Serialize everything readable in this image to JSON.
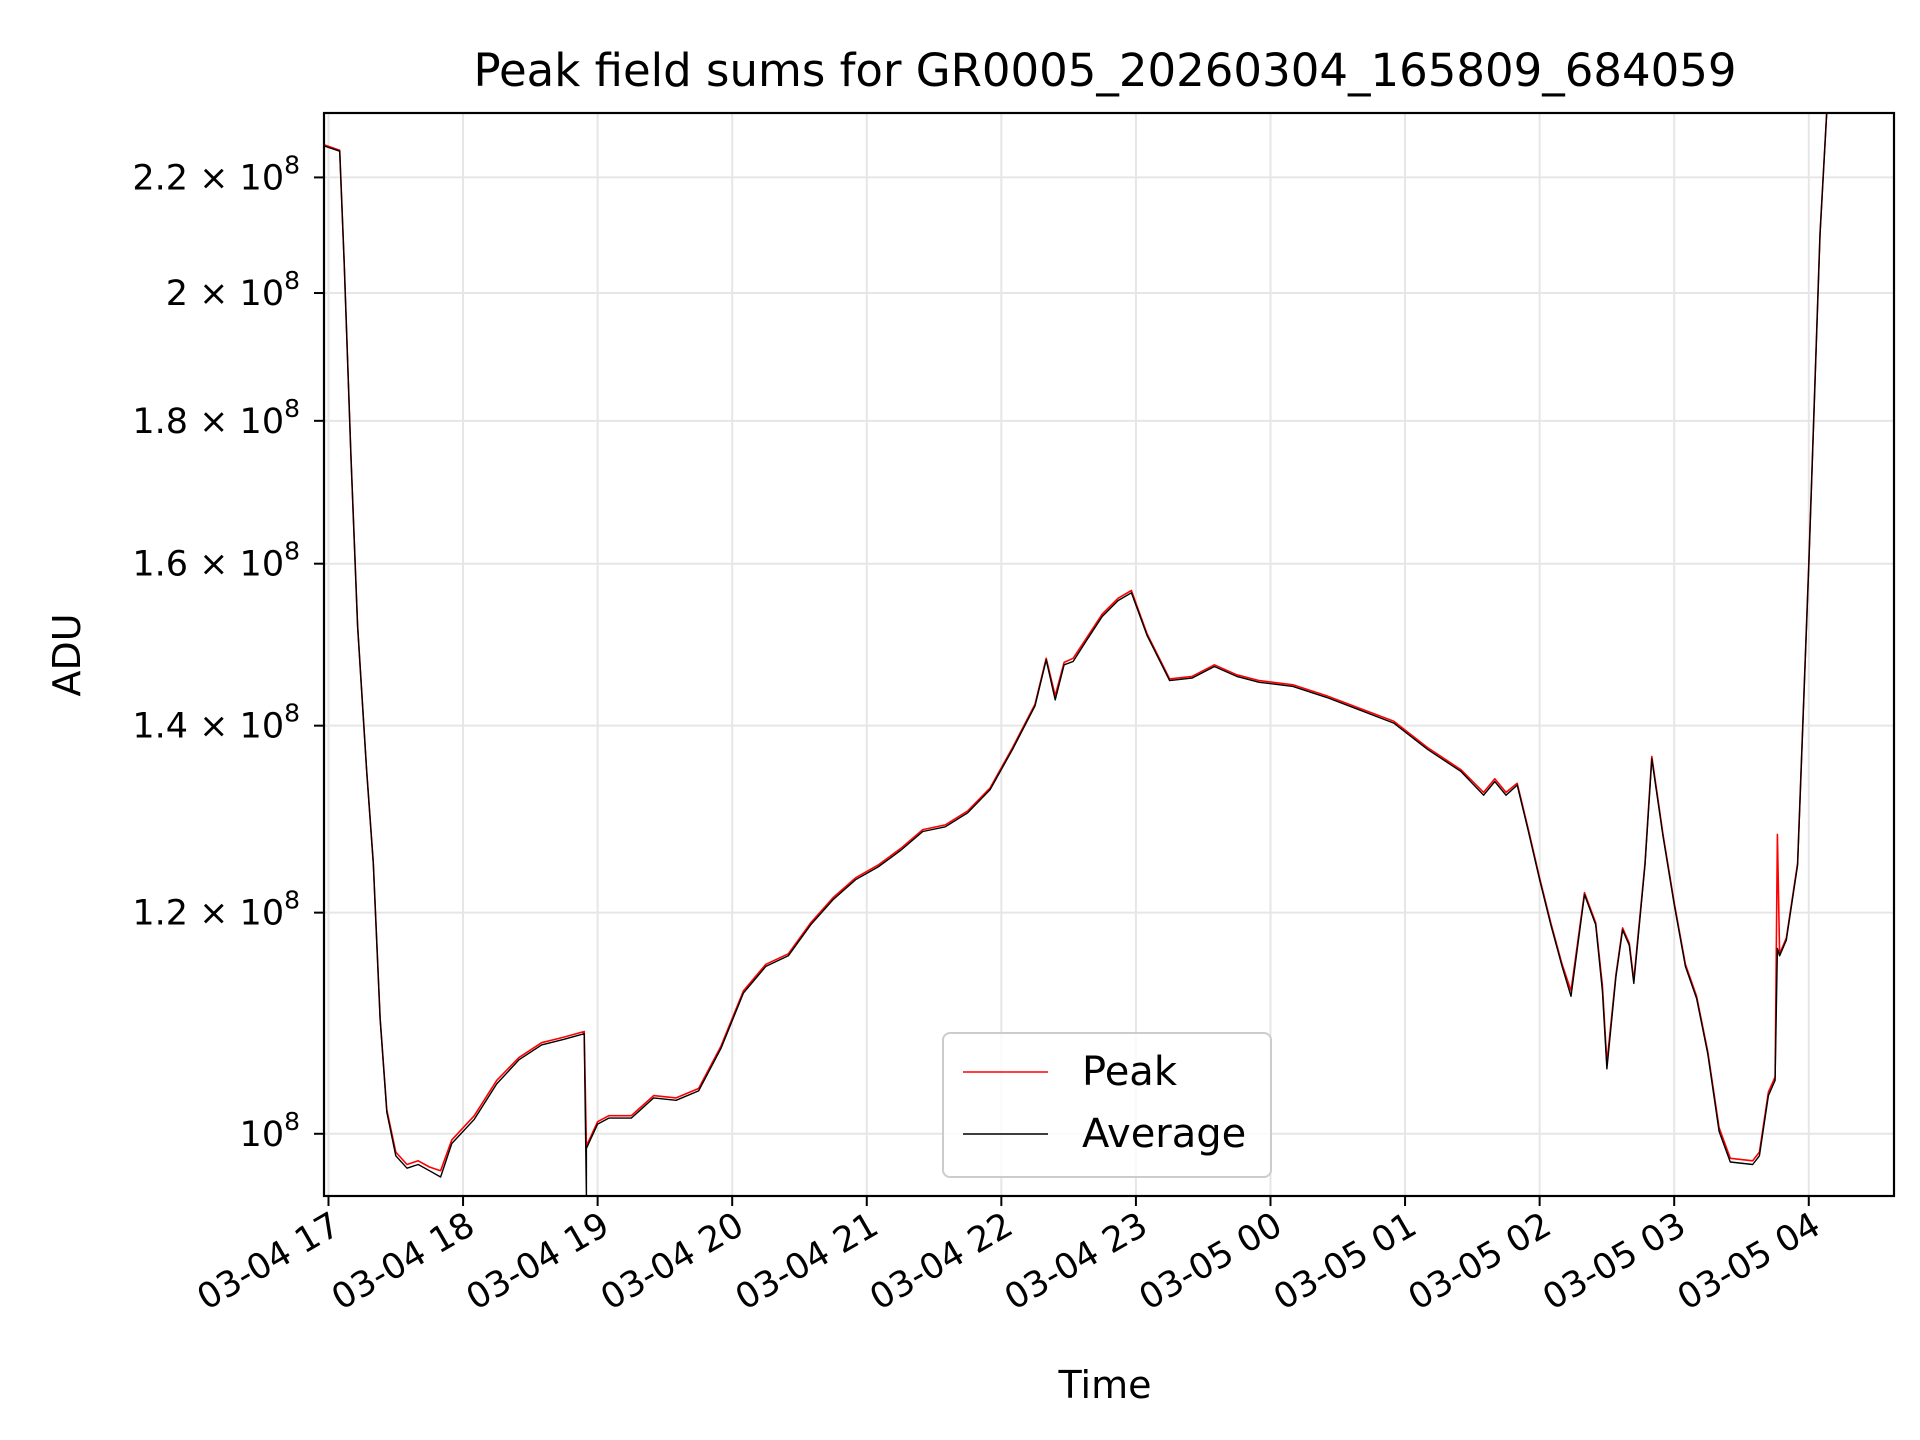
{
  "chart_data": {
    "type": "line",
    "title": "Peak field sums for GR0005_20260304_165809_684059",
    "xlabel": "Time",
    "ylabel": "ADU",
    "y_scale": "log",
    "grid": true,
    "legend_position": "lower center",
    "xlim": [
      "2026-03-04 16:58",
      "2026-03-05 04:38"
    ],
    "ylim": [
      95000000,
      232000000
    ],
    "x_ticks": [
      "2026-03-04 17:00",
      "2026-03-04 18:00",
      "2026-03-04 19:00",
      "2026-03-04 20:00",
      "2026-03-04 21:00",
      "2026-03-04 22:00",
      "2026-03-04 23:00",
      "2026-03-05 00:00",
      "2026-03-05 01:00",
      "2026-03-05 02:00",
      "2026-03-05 03:00",
      "2026-03-05 04:00"
    ],
    "x_tick_labels": [
      "03-04 17",
      "03-04 18",
      "03-04 19",
      "03-04 20",
      "03-04 21",
      "03-04 22",
      "03-04 23",
      "03-05 00",
      "03-05 01",
      "03-05 02",
      "03-05 03",
      "03-05 04"
    ],
    "y_ticks": [
      {
        "value": 100000000,
        "mantissa": "",
        "exp": "8",
        "full": "10"
      },
      {
        "value": 120000000,
        "mantissa": "1.2",
        "exp": "8",
        "full": ""
      },
      {
        "value": 140000000,
        "mantissa": "1.4",
        "exp": "8",
        "full": ""
      },
      {
        "value": 160000000,
        "mantissa": "1.6",
        "exp": "8",
        "full": ""
      },
      {
        "value": 180000000,
        "mantissa": "1.8",
        "exp": "8",
        "full": ""
      },
      {
        "value": 200000000,
        "mantissa": "2",
        "exp": "8",
        "full": ""
      },
      {
        "value": 220000000,
        "mantissa": "2.2",
        "exp": "8",
        "full": ""
      }
    ],
    "times_symbol": "×",
    "series": [
      {
        "name": "Peak",
        "color": "#ff0000",
        "points": [
          [
            "2026-03-04 16:58",
            226000000
          ],
          [
            "2026-03-04 17:05",
            225000000
          ],
          [
            "2026-03-04 17:07",
            205000000
          ],
          [
            "2026-03-04 17:10",
            175000000
          ],
          [
            "2026-03-04 17:13",
            152000000
          ],
          [
            "2026-03-04 17:17",
            135000000
          ],
          [
            "2026-03-04 17:20",
            125000000
          ],
          [
            "2026-03-04 17:23",
            110000000
          ],
          [
            "2026-03-04 17:26",
            102000000
          ],
          [
            "2026-03-04 17:30",
            98500000
          ],
          [
            "2026-03-04 17:35",
            97500000
          ],
          [
            "2026-03-04 17:40",
            97800000
          ],
          [
            "2026-03-04 17:45",
            97300000
          ],
          [
            "2026-03-04 17:50",
            97000000
          ],
          [
            "2026-03-04 17:55",
            99500000
          ],
          [
            "2026-03-04 18:05",
            101500000
          ],
          [
            "2026-03-04 18:15",
            104500000
          ],
          [
            "2026-03-04 18:25",
            106500000
          ],
          [
            "2026-03-04 18:35",
            107800000
          ],
          [
            "2026-03-04 18:45",
            108300000
          ],
          [
            "2026-03-04 18:54",
            108800000
          ],
          [
            "2026-03-04 18:55",
            99000000
          ],
          [
            "2026-03-04 19:00",
            101000000
          ],
          [
            "2026-03-04 19:05",
            101500000
          ],
          [
            "2026-03-04 19:15",
            101500000
          ],
          [
            "2026-03-04 19:25",
            103200000
          ],
          [
            "2026-03-04 19:35",
            103000000
          ],
          [
            "2026-03-04 19:45",
            103800000
          ],
          [
            "2026-03-04 19:55",
            107500000
          ],
          [
            "2026-03-04 20:05",
            112500000
          ],
          [
            "2026-03-04 20:15",
            115000000
          ],
          [
            "2026-03-04 20:25",
            116000000
          ],
          [
            "2026-03-04 20:35",
            119000000
          ],
          [
            "2026-03-04 20:45",
            121500000
          ],
          [
            "2026-03-04 20:55",
            123500000
          ],
          [
            "2026-03-04 21:05",
            124800000
          ],
          [
            "2026-03-04 21:15",
            126500000
          ],
          [
            "2026-03-04 21:25",
            128500000
          ],
          [
            "2026-03-04 21:35",
            129000000
          ],
          [
            "2026-03-04 21:45",
            130500000
          ],
          [
            "2026-03-04 21:55",
            133000000
          ],
          [
            "2026-03-04 22:05",
            137500000
          ],
          [
            "2026-03-04 22:15",
            142500000
          ],
          [
            "2026-03-04 22:20",
            148000000
          ],
          [
            "2026-03-04 22:24",
            143500000
          ],
          [
            "2026-03-04 22:28",
            147500000
          ],
          [
            "2026-03-04 22:32",
            148000000
          ],
          [
            "2026-03-04 22:38",
            150500000
          ],
          [
            "2026-03-04 22:45",
            153500000
          ],
          [
            "2026-03-04 22:52",
            155500000
          ],
          [
            "2026-03-04 22:58",
            156500000
          ],
          [
            "2026-03-04 23:05",
            151000000
          ],
          [
            "2026-03-04 23:15",
            145500000
          ],
          [
            "2026-03-04 23:25",
            145800000
          ],
          [
            "2026-03-04 23:35",
            147200000
          ],
          [
            "2026-03-04 23:45",
            146000000
          ],
          [
            "2026-03-04 23:55",
            145300000
          ],
          [
            "2026-03-05 00:10",
            144800000
          ],
          [
            "2026-03-05 00:25",
            143500000
          ],
          [
            "2026-03-05 00:40",
            142000000
          ],
          [
            "2026-03-05 00:55",
            140500000
          ],
          [
            "2026-03-05 01:10",
            137500000
          ],
          [
            "2026-03-05 01:25",
            135000000
          ],
          [
            "2026-03-05 01:35",
            132500000
          ],
          [
            "2026-03-05 01:40",
            134000000
          ],
          [
            "2026-03-05 01:45",
            132500000
          ],
          [
            "2026-03-05 01:50",
            133500000
          ],
          [
            "2026-03-05 01:55",
            128500000
          ],
          [
            "2026-03-05 02:00",
            123500000
          ],
          [
            "2026-03-05 02:05",
            119000000
          ],
          [
            "2026-03-05 02:10",
            115000000
          ],
          [
            "2026-03-05 02:14",
            112500000
          ],
          [
            "2026-03-05 02:20",
            122000000
          ],
          [
            "2026-03-05 02:25",
            119000000
          ],
          [
            "2026-03-05 02:28",
            113000000
          ],
          [
            "2026-03-05 02:30",
            106000000
          ],
          [
            "2026-03-05 02:34",
            114000000
          ],
          [
            "2026-03-05 02:37",
            118500000
          ],
          [
            "2026-03-05 02:40",
            117000000
          ],
          [
            "2026-03-05 02:42",
            113500000
          ],
          [
            "2026-03-05 02:47",
            125000000
          ],
          [
            "2026-03-05 02:50",
            136500000
          ],
          [
            "2026-03-05 02:55",
            128000000
          ],
          [
            "2026-03-05 03:00",
            121000000
          ],
          [
            "2026-03-05 03:05",
            115000000
          ],
          [
            "2026-03-05 03:10",
            112000000
          ],
          [
            "2026-03-05 03:15",
            107000000
          ],
          [
            "2026-03-05 03:20",
            100500000
          ],
          [
            "2026-03-05 03:25",
            98000000
          ],
          [
            "2026-03-05 03:35",
            97800000
          ],
          [
            "2026-03-05 03:38",
            98500000
          ],
          [
            "2026-03-05 03:42",
            103500000
          ],
          [
            "2026-03-05 03:45",
            104800000
          ],
          [
            "2026-03-05 03:46",
            128000000
          ],
          [
            "2026-03-05 03:47",
            116000000
          ],
          [
            "2026-03-05 03:50",
            117500000
          ],
          [
            "2026-03-05 03:55",
            125000000
          ],
          [
            "2026-03-05 04:00",
            160000000
          ],
          [
            "2026-03-05 04:05",
            210000000
          ],
          [
            "2026-03-05 04:08",
            232000000
          ]
        ]
      },
      {
        "name": "Average",
        "color": "#000000",
        "points": [
          [
            "2026-03-04 16:58",
            225800000
          ],
          [
            "2026-03-04 17:05",
            224800000
          ],
          [
            "2026-03-04 17:07",
            205000000
          ],
          [
            "2026-03-04 17:10",
            175000000
          ],
          [
            "2026-03-04 17:13",
            152000000
          ],
          [
            "2026-03-04 17:17",
            135000000
          ],
          [
            "2026-03-04 17:20",
            125000000
          ],
          [
            "2026-03-04 17:23",
            110000000
          ],
          [
            "2026-03-04 17:26",
            101800000
          ],
          [
            "2026-03-04 17:30",
            98200000
          ],
          [
            "2026-03-04 17:35",
            97200000
          ],
          [
            "2026-03-04 17:40",
            97500000
          ],
          [
            "2026-03-04 17:45",
            97000000
          ],
          [
            "2026-03-04 17:50",
            96500000
          ],
          [
            "2026-03-04 17:55",
            99200000
          ],
          [
            "2026-03-04 18:05",
            101200000
          ],
          [
            "2026-03-04 18:15",
            104200000
          ],
          [
            "2026-03-04 18:25",
            106300000
          ],
          [
            "2026-03-04 18:35",
            107600000
          ],
          [
            "2026-03-04 18:45",
            108100000
          ],
          [
            "2026-03-04 18:54",
            108600000
          ],
          [
            "2026-03-04 18:55",
            95000000
          ],
          [
            "2026-03-04 18:55",
            98800000
          ],
          [
            "2026-03-04 19:00",
            100800000
          ],
          [
            "2026-03-04 19:05",
            101300000
          ],
          [
            "2026-03-04 19:15",
            101300000
          ],
          [
            "2026-03-04 19:25",
            103000000
          ],
          [
            "2026-03-04 19:35",
            102800000
          ],
          [
            "2026-03-04 19:45",
            103600000
          ],
          [
            "2026-03-04 19:55",
            107300000
          ],
          [
            "2026-03-04 20:05",
            112300000
          ],
          [
            "2026-03-04 20:15",
            114800000
          ],
          [
            "2026-03-04 20:25",
            115800000
          ],
          [
            "2026-03-04 20:35",
            118800000
          ],
          [
            "2026-03-04 20:45",
            121300000
          ],
          [
            "2026-03-04 20:55",
            123300000
          ],
          [
            "2026-03-04 21:05",
            124600000
          ],
          [
            "2026-03-04 21:15",
            126300000
          ],
          [
            "2026-03-04 21:25",
            128300000
          ],
          [
            "2026-03-04 21:35",
            128800000
          ],
          [
            "2026-03-04 21:45",
            130300000
          ],
          [
            "2026-03-04 21:55",
            132800000
          ],
          [
            "2026-03-04 22:05",
            137300000
          ],
          [
            "2026-03-04 22:15",
            142300000
          ],
          [
            "2026-03-04 22:20",
            147800000
          ],
          [
            "2026-03-04 22:24",
            143000000
          ],
          [
            "2026-03-04 22:28",
            147200000
          ],
          [
            "2026-03-04 22:32",
            147600000
          ],
          [
            "2026-03-04 22:38",
            150200000
          ],
          [
            "2026-03-04 22:45",
            153200000
          ],
          [
            "2026-03-04 22:52",
            155200000
          ],
          [
            "2026-03-04 22:58",
            156200000
          ],
          [
            "2026-03-04 23:05",
            150800000
          ],
          [
            "2026-03-04 23:15",
            145300000
          ],
          [
            "2026-03-04 23:25",
            145600000
          ],
          [
            "2026-03-04 23:35",
            147000000
          ],
          [
            "2026-03-04 23:45",
            145800000
          ],
          [
            "2026-03-04 23:55",
            145100000
          ],
          [
            "2026-03-05 00:10",
            144600000
          ],
          [
            "2026-03-05 00:25",
            143300000
          ],
          [
            "2026-03-05 00:40",
            141800000
          ],
          [
            "2026-03-05 00:55",
            140300000
          ],
          [
            "2026-03-05 01:10",
            137300000
          ],
          [
            "2026-03-05 01:25",
            134800000
          ],
          [
            "2026-03-05 01:35",
            132200000
          ],
          [
            "2026-03-05 01:40",
            133700000
          ],
          [
            "2026-03-05 01:45",
            132200000
          ],
          [
            "2026-03-05 01:50",
            133300000
          ],
          [
            "2026-03-05 01:55",
            128300000
          ],
          [
            "2026-03-05 02:00",
            123300000
          ],
          [
            "2026-03-05 02:05",
            118800000
          ],
          [
            "2026-03-05 02:10",
            114800000
          ],
          [
            "2026-03-05 02:14",
            112000000
          ],
          [
            "2026-03-05 02:20",
            121800000
          ],
          [
            "2026-03-05 02:25",
            118800000
          ],
          [
            "2026-03-05 02:28",
            112500000
          ],
          [
            "2026-03-05 02:30",
            105500000
          ],
          [
            "2026-03-05 02:34",
            113800000
          ],
          [
            "2026-03-05 02:37",
            118300000
          ],
          [
            "2026-03-05 02:40",
            116800000
          ],
          [
            "2026-03-05 02:42",
            113200000
          ],
          [
            "2026-03-05 02:47",
            124800000
          ],
          [
            "2026-03-05 02:50",
            136200000
          ],
          [
            "2026-03-05 02:55",
            127800000
          ],
          [
            "2026-03-05 03:00",
            120800000
          ],
          [
            "2026-03-05 03:05",
            114800000
          ],
          [
            "2026-03-05 03:10",
            111800000
          ],
          [
            "2026-03-05 03:15",
            106800000
          ],
          [
            "2026-03-05 03:20",
            100200000
          ],
          [
            "2026-03-05 03:25",
            97700000
          ],
          [
            "2026-03-05 03:35",
            97500000
          ],
          [
            "2026-03-05 03:38",
            98200000
          ],
          [
            "2026-03-05 03:42",
            103200000
          ],
          [
            "2026-03-05 03:45",
            104500000
          ],
          [
            "2026-03-05 03:46",
            116500000
          ],
          [
            "2026-03-05 03:47",
            115800000
          ],
          [
            "2026-03-05 03:50",
            117300000
          ],
          [
            "2026-03-05 03:55",
            124800000
          ],
          [
            "2026-03-05 04:00",
            159800000
          ],
          [
            "2026-03-05 04:05",
            209800000
          ],
          [
            "2026-03-05 04:08",
            232000000
          ]
        ]
      }
    ]
  }
}
